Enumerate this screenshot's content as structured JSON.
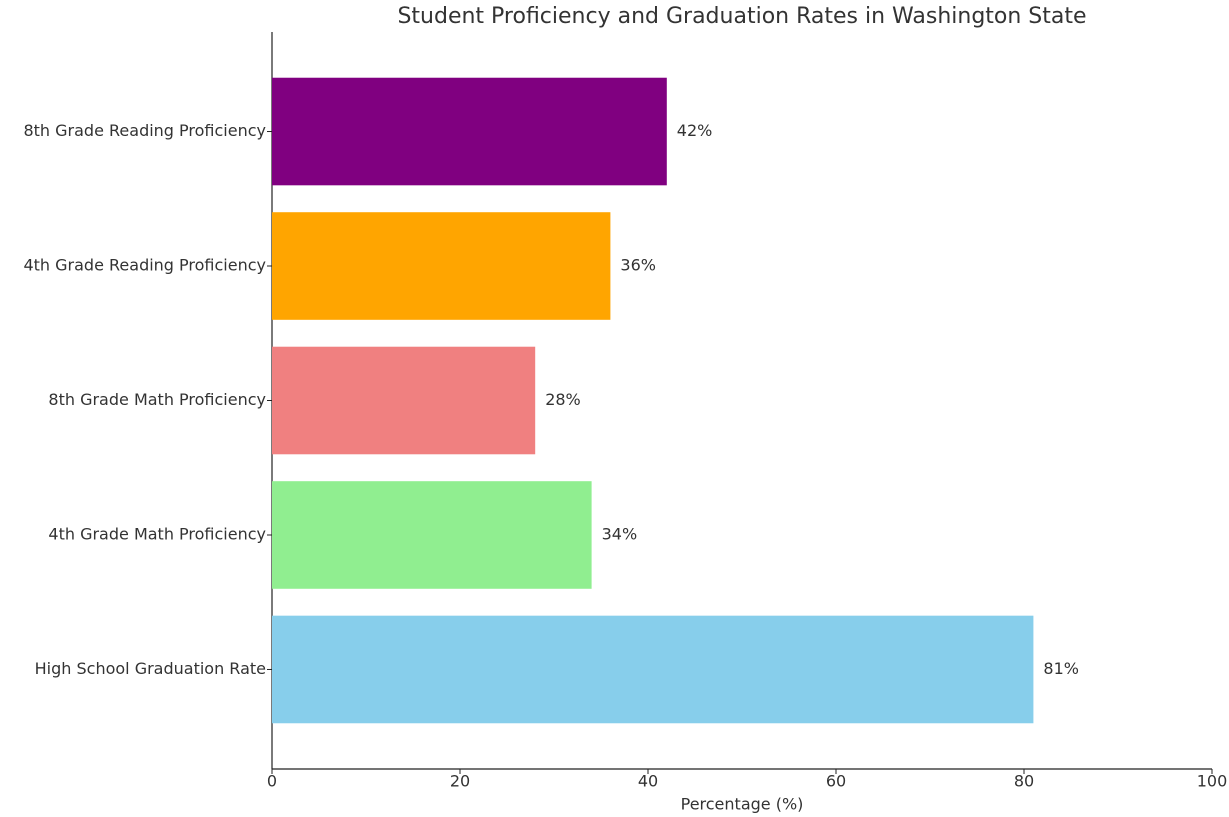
{
  "chart_data": {
    "type": "barh",
    "title": "Student Proficiency and Graduation Rates in Washington State",
    "xlabel": "Percentage (%)",
    "categories": [
      "High School Graduation Rate",
      "4th Grade Math Proficiency",
      "8th Grade Math Proficiency",
      "4th Grade Reading Proficiency",
      "8th Grade Reading Proficiency"
    ],
    "values": [
      81,
      34,
      28,
      36,
      42
    ],
    "value_labels": [
      "81%",
      "34%",
      "28%",
      "36%",
      "42%"
    ],
    "colors": [
      "#87ceeb",
      "#90ee90",
      "#f08080",
      "#ffa500",
      "#800080"
    ],
    "xlim": [
      0,
      100
    ],
    "xticks": [
      0,
      20,
      40,
      60,
      80,
      100
    ],
    "grid": false
  }
}
